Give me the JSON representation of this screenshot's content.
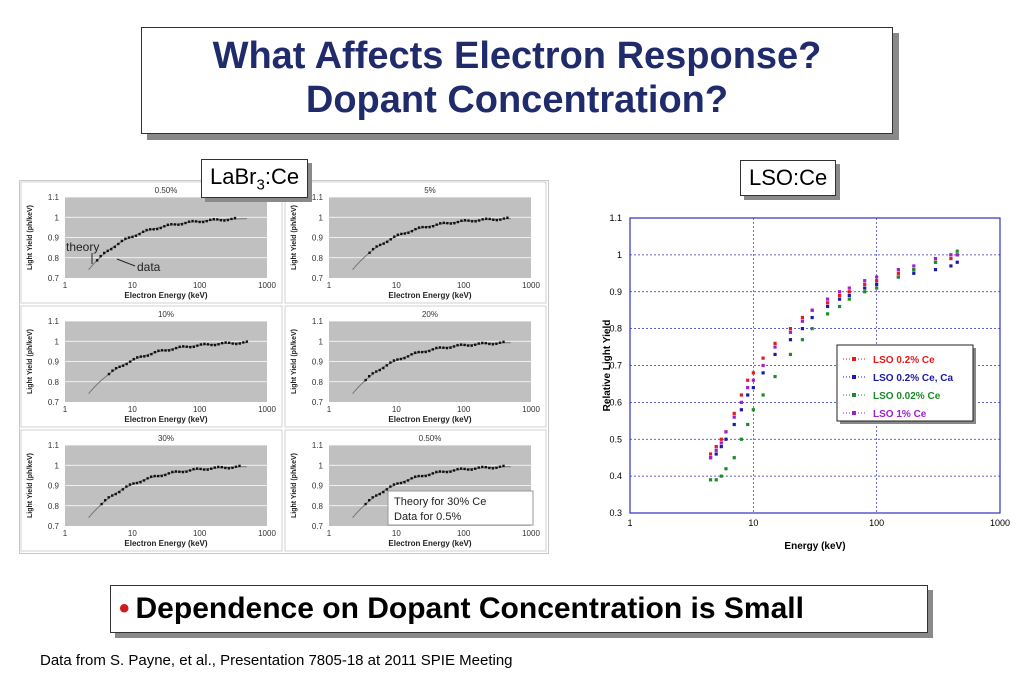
{
  "title": {
    "line1": "What Affects Electron Response?",
    "line2": "Dopant Concentration?"
  },
  "labels": {
    "labr_main": "LaBr",
    "labr_sub": "3",
    "labr_end": ":Ce",
    "lso": "LSO:Ce"
  },
  "bottom": {
    "bullet": "•",
    "text": "Dependence on Dopant Concentration is Small"
  },
  "footer": "Data from S. Payne, et al., Presentation 7805-18 at 2011 SPIE Meeting",
  "colors": {
    "title": "#1f2b6b",
    "bullet": "#d01c1c",
    "panel_bg": "#c0c0c0",
    "lso_red": "#e41a1c",
    "lso_blue": "#1a1aa8",
    "lso_green": "#1e8a2a",
    "lso_purple": "#a020d0"
  },
  "chart_data": [
    {
      "type": "scatter",
      "panel": "LaBr3:Ce grid",
      "xlabel": "Electron Energy (keV)",
      "ylabel": "Light Yield (ph/keV)",
      "xscale": "log",
      "xlim": [
        1,
        1000
      ],
      "ylim": [
        0.7,
        1.1
      ],
      "x_ticks": [
        "1",
        "10",
        "100",
        "1000"
      ],
      "y_ticks": [
        "0.7",
        "0.8",
        "0.9",
        "1",
        "1.1"
      ],
      "panels": [
        {
          "title": "0.50%",
          "annotations": [
            "theory",
            "data"
          ],
          "data_start_keV": 3
        },
        {
          "title": "5%",
          "annotations": [],
          "data_start_keV": 4
        },
        {
          "title": "10%",
          "annotations": [],
          "data_start_keV": 4.5
        },
        {
          "title": "20%",
          "annotations": [],
          "data_start_keV": 3.5
        },
        {
          "title": "30%",
          "annotations": [],
          "data_start_keV": 3.5
        },
        {
          "title": "0.50%",
          "annotations": [
            "Theory for 30% Ce",
            "Data for 0.5%"
          ],
          "data_start_keV": 3.5
        }
      ]
    },
    {
      "type": "scatter",
      "panel": "LSO:Ce",
      "xlabel": "Energy (keV)",
      "ylabel": "Relative Light Yield",
      "xscale": "log",
      "xlim": [
        1,
        1000
      ],
      "ylim": [
        0.3,
        1.1
      ],
      "x_ticks": [
        "1",
        "10",
        "100",
        "1000"
      ],
      "y_ticks": [
        "0.3",
        "0.4",
        "0.5",
        "0.6",
        "0.7",
        "0.8",
        "0.9",
        "1",
        "1.1"
      ],
      "legend_position": "right",
      "series": [
        {
          "name": "LSO 0.2% Ce",
          "color": "#e41a1c",
          "x": [
            4.5,
            5,
            5.5,
            6,
            7,
            8,
            9,
            10,
            12,
            15,
            20,
            25,
            30,
            40,
            50,
            60,
            80,
            100,
            150,
            200,
            300,
            400,
            450
          ],
          "y": [
            0.46,
            0.48,
            0.5,
            0.52,
            0.57,
            0.62,
            0.66,
            0.68,
            0.72,
            0.76,
            0.8,
            0.83,
            0.85,
            0.87,
            0.89,
            0.9,
            0.92,
            0.93,
            0.95,
            0.96,
            0.98,
            0.99,
            1.0
          ]
        },
        {
          "name": "LSO 0.2% Ce, Ca",
          "color": "#1a1aa8",
          "x": [
            4.5,
            5,
            5.5,
            6,
            7,
            8,
            9,
            10,
            12,
            15,
            20,
            25,
            30,
            40,
            50,
            60,
            80,
            100,
            150,
            200,
            300,
            400,
            450
          ],
          "y": [
            0.45,
            0.46,
            0.48,
            0.5,
            0.54,
            0.58,
            0.62,
            0.64,
            0.68,
            0.73,
            0.77,
            0.8,
            0.83,
            0.86,
            0.88,
            0.89,
            0.91,
            0.92,
            0.94,
            0.95,
            0.96,
            0.97,
            0.98
          ]
        },
        {
          "name": "LSO 0.02% Ce",
          "color": "#1e8a2a",
          "x": [
            4.5,
            5,
            5.5,
            6,
            7,
            8,
            9,
            10,
            12,
            15,
            20,
            25,
            30,
            40,
            50,
            60,
            80,
            100,
            150,
            200,
            300,
            400,
            450
          ],
          "y": [
            0.39,
            0.39,
            0.4,
            0.42,
            0.45,
            0.5,
            0.54,
            0.58,
            0.62,
            0.67,
            0.73,
            0.77,
            0.8,
            0.84,
            0.86,
            0.88,
            0.9,
            0.91,
            0.94,
            0.96,
            0.98,
            1.0,
            1.01
          ]
        },
        {
          "name": "LSO 1% Ce",
          "color": "#a020d0",
          "x": [
            4.5,
            5,
            5.5,
            6,
            7,
            8,
            9,
            10,
            12,
            15,
            20,
            25,
            30,
            40,
            50,
            60,
            80,
            100,
            150,
            200,
            300,
            400,
            450
          ],
          "y": [
            0.45,
            0.47,
            0.49,
            0.52,
            0.56,
            0.6,
            0.64,
            0.66,
            0.7,
            0.75,
            0.79,
            0.82,
            0.85,
            0.88,
            0.9,
            0.91,
            0.93,
            0.94,
            0.96,
            0.97,
            0.99,
            1.0,
            1.0
          ]
        }
      ]
    }
  ]
}
